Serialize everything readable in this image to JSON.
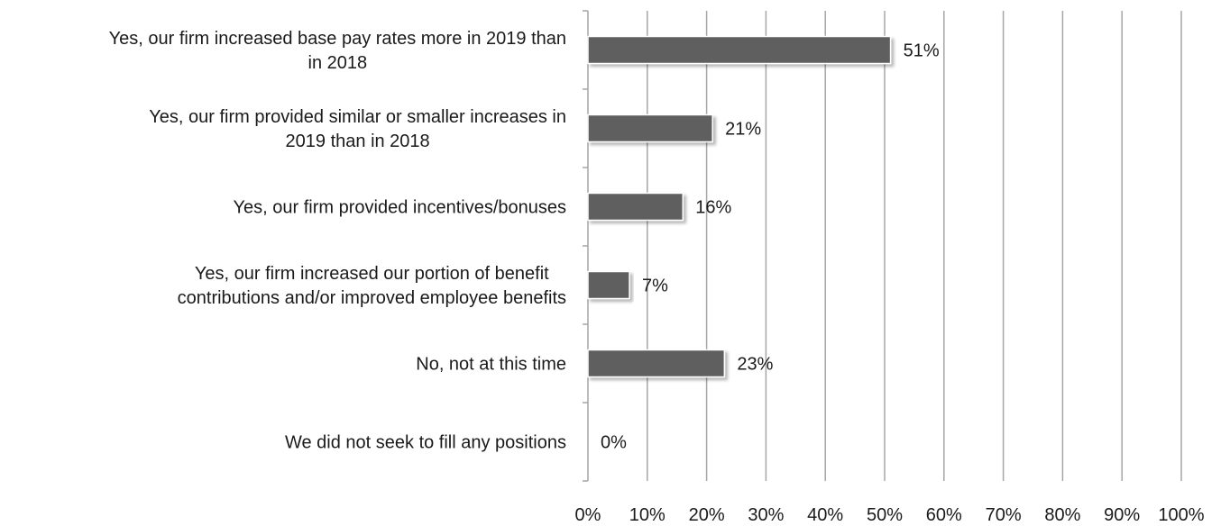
{
  "chart_data": {
    "type": "bar",
    "orientation": "horizontal",
    "categories": [
      [
        "Yes, our firm increased base pay rates more in 2019 than",
        "in 2018"
      ],
      [
        "Yes, our firm provided similar or smaller increases in",
        "2019 than in 2018"
      ],
      [
        "Yes, our firm provided incentives/bonuses"
      ],
      [
        "Yes, our firm increased our portion of benefit",
        "contributions and/or improved employee benefits"
      ],
      [
        "No, not at this time"
      ],
      [
        "We did not seek to fill any positions"
      ]
    ],
    "values": [
      51,
      21,
      16,
      7,
      23,
      0
    ],
    "data_labels": [
      "51%",
      "21%",
      "16%",
      "7%",
      "23%",
      "0%"
    ],
    "xlim": [
      0,
      100
    ],
    "x_ticks": [
      "0%",
      "10%",
      "20%",
      "30%",
      "40%",
      "50%",
      "60%",
      "70%",
      "80%",
      "90%",
      "100%"
    ],
    "grid": "vertical",
    "legend": "none",
    "bar_color": "#5f5f5f",
    "grid_color": "#a6a6a6"
  }
}
